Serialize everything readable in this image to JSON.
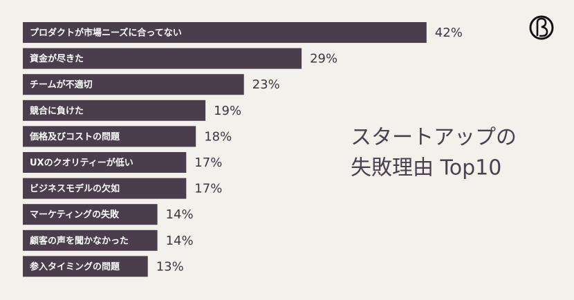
{
  "chart_data": {
    "type": "bar",
    "orientation": "horizontal",
    "title": [
      "スタートアップの",
      "失敗理由 Top10"
    ],
    "categories": [
      "プロダクトが市場ニーズに合ってない",
      "資金が尽きた",
      "チームが不適切",
      "競合に負けた",
      "価格及びコストの問題",
      "UXのクオリティーが低い",
      "ビジネスモデルの欠如",
      "マーケティングの失敗",
      "顧客の声を聞かなかった",
      "参入タイミングの問題"
    ],
    "values": [
      42,
      29,
      23,
      19,
      18,
      17,
      17,
      14,
      14,
      13
    ],
    "value_labels": [
      "42%",
      "29%",
      "23%",
      "19%",
      "18%",
      "17%",
      "17%",
      "14%",
      "14%",
      "13%"
    ],
    "color": "#4a3d4c"
  }
}
